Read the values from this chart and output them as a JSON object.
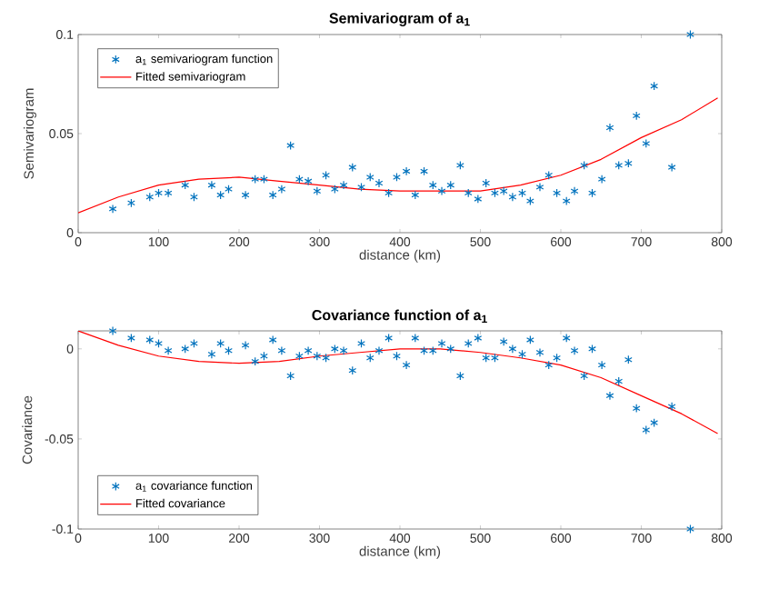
{
  "chart_data": [
    {
      "type": "scatter",
      "title": "Semivariogram of a$_{1}$",
      "xlabel": "distance (km)",
      "ylabel": "Semivariogram",
      "xlim": [
        0,
        800
      ],
      "ylim": [
        0,
        0.1
      ],
      "xticks": [
        0,
        100,
        200,
        300,
        400,
        500,
        600,
        700,
        800
      ],
      "yticks": [
        0,
        0.05,
        0.1
      ],
      "grid": false,
      "legend": "top left",
      "series": [
        {
          "name": "a$_{1}$ semivariogram function",
          "marker": "cross",
          "color": "#0072bd",
          "x": [
            43,
            66,
            89,
            100,
            112,
            133,
            144,
            166,
            177,
            187,
            208,
            220,
            231,
            242,
            253,
            264,
            275,
            286,
            297,
            308,
            319,
            330,
            341,
            352,
            363,
            374,
            386,
            396,
            408,
            419,
            430,
            441,
            452,
            463,
            475,
            485,
            497,
            507,
            518,
            529,
            540,
            552,
            562,
            574,
            585,
            595,
            607,
            617,
            629,
            639,
            651,
            661,
            672,
            684,
            694,
            706,
            716,
            738,
            761
          ],
          "values": [
            0.012,
            0.015,
            0.018,
            0.02,
            0.02,
            0.024,
            0.018,
            0.024,
            0.019,
            0.022,
            0.019,
            0.027,
            0.027,
            0.019,
            0.022,
            0.044,
            0.027,
            0.026,
            0.021,
            0.029,
            0.022,
            0.024,
            0.033,
            0.023,
            0.028,
            0.025,
            0.02,
            0.028,
            0.031,
            0.019,
            0.031,
            0.024,
            0.021,
            0.024,
            0.034,
            0.02,
            0.017,
            0.025,
            0.02,
            0.021,
            0.018,
            0.02,
            0.016,
            0.023,
            0.029,
            0.02,
            0.016,
            0.021,
            0.034,
            0.02,
            0.027,
            0.053,
            0.034,
            0.035,
            0.059,
            0.045,
            0.074,
            0.033,
            0.1
          ]
        },
        {
          "name": "Fitted semivariogram",
          "type": "line",
          "marker": "none",
          "line_style": "solid",
          "color": "#ff0000",
          "x": [
            0,
            50,
            100,
            150,
            200,
            250,
            300,
            350,
            400,
            450,
            500,
            550,
            600,
            650,
            700,
            750,
            795
          ],
          "values": [
            0.01,
            0.018,
            0.024,
            0.027,
            0.028,
            0.026,
            0.024,
            0.022,
            0.021,
            0.021,
            0.021,
            0.024,
            0.029,
            0.037,
            0.048,
            0.057,
            0.068
          ]
        }
      ]
    },
    {
      "type": "scatter",
      "title": "Covariance function of a$_{1}$",
      "xlabel": "distance (km)",
      "ylabel": "Covariance",
      "xlim": [
        0,
        800
      ],
      "ylim": [
        -0.1,
        0.01
      ],
      "xticks": [
        0,
        100,
        200,
        300,
        400,
        500,
        600,
        700,
        800
      ],
      "yticks": [
        -0.1,
        -0.05,
        0
      ],
      "grid": false,
      "legend": "bottom left",
      "series": [
        {
          "name": "a$_{1}$ covariance function",
          "marker": "cross",
          "color": "#0072bd",
          "x": [
            43,
            66,
            89,
            100,
            112,
            133,
            144,
            166,
            177,
            187,
            208,
            220,
            231,
            242,
            253,
            264,
            275,
            286,
            297,
            308,
            319,
            330,
            341,
            352,
            363,
            374,
            386,
            396,
            408,
            419,
            430,
            441,
            452,
            463,
            475,
            485,
            497,
            507,
            518,
            529,
            540,
            552,
            562,
            574,
            585,
            595,
            607,
            617,
            629,
            639,
            651,
            661,
            672,
            684,
            694,
            706,
            716,
            738,
            761
          ],
          "values": [
            0.01,
            0.006,
            0.005,
            0.003,
            -0.001,
            0,
            0.003,
            -0.003,
            0.003,
            -0.001,
            0.002,
            -0.007,
            -0.004,
            0.005,
            -0.001,
            -0.015,
            -0.004,
            -0.001,
            -0.004,
            -0.005,
            0,
            -0.001,
            -0.012,
            0.003,
            -0.005,
            -0.001,
            0.006,
            -0.004,
            -0.009,
            0.006,
            -0.001,
            -0.001,
            0.003,
            0,
            -0.015,
            0.003,
            0.006,
            -0.005,
            -0.005,
            0.004,
            0,
            -0.003,
            0.005,
            -0.002,
            -0.009,
            -0.005,
            0.006,
            -0.001,
            -0.015,
            0,
            -0.009,
            -0.026,
            -0.018,
            -0.006,
            -0.033,
            -0.045,
            -0.041,
            -0.032,
            -0.1
          ]
        },
        {
          "name": "Fitted covariance",
          "type": "line",
          "marker": "none",
          "line_style": "solid",
          "color": "#ff0000",
          "x": [
            0,
            50,
            100,
            150,
            200,
            250,
            300,
            350,
            400,
            450,
            500,
            550,
            600,
            650,
            700,
            750,
            795
          ],
          "values": [
            0.01,
            0.002,
            -0.004,
            -0.007,
            -0.008,
            -0.007,
            -0.004,
            -0.002,
            0,
            0,
            -0.002,
            -0.005,
            -0.009,
            -0.016,
            -0.026,
            -0.036,
            -0.047
          ]
        }
      ]
    }
  ]
}
